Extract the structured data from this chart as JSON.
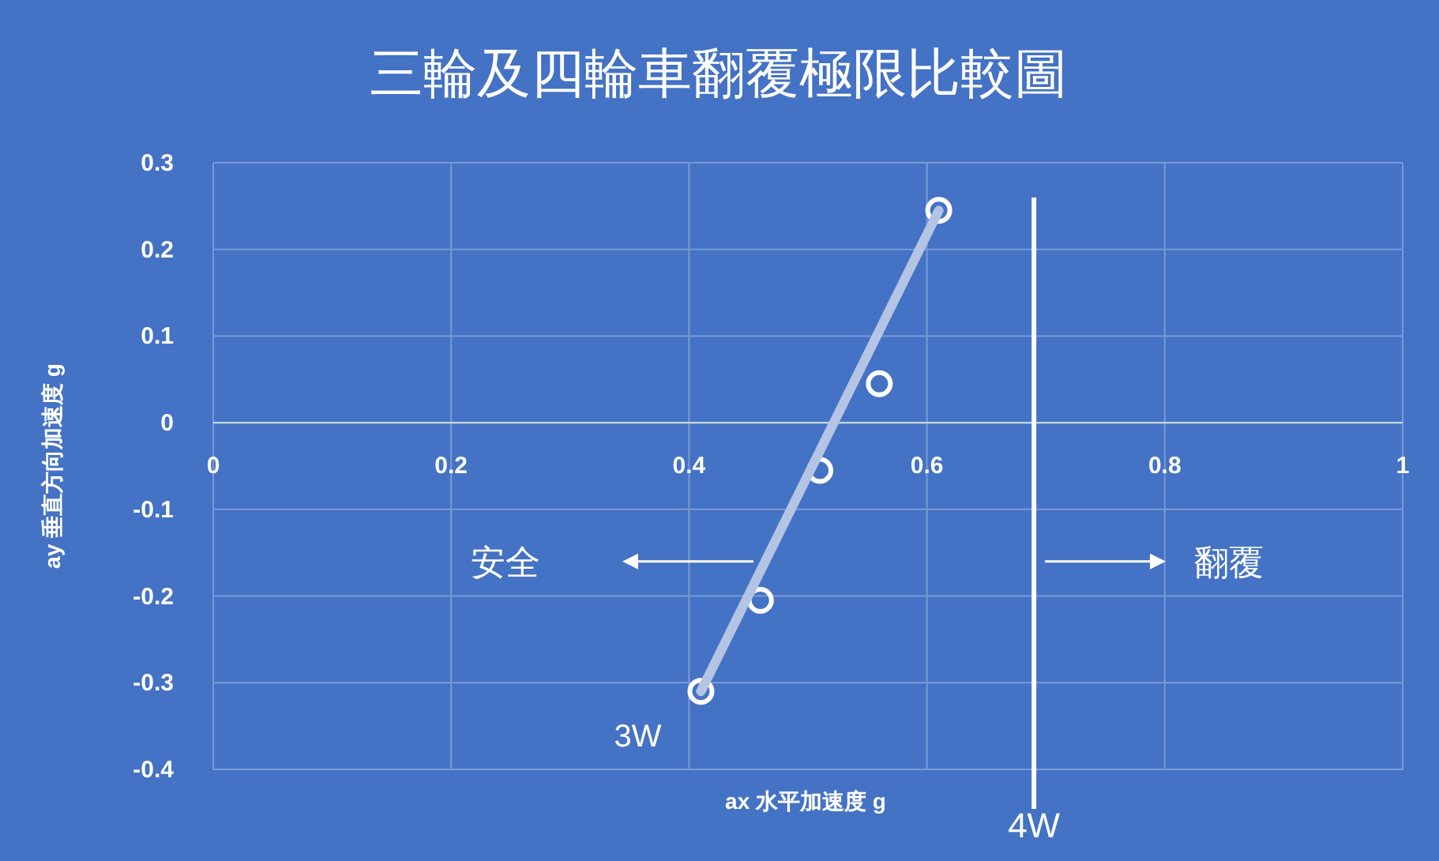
{
  "chart_data": {
    "type": "scatter",
    "title": "三輪及四輪車翻覆極限比較圖",
    "xlabel": "ax 水平加速度 g",
    "ylabel": "ay 垂直方向加速度 g",
    "xlim": [
      0,
      1
    ],
    "xticks": [
      0,
      0.2,
      0.4,
      0.6,
      0.8,
      1
    ],
    "ylim": [
      -0.4,
      0.3
    ],
    "yticks": [
      -0.4,
      -0.3,
      -0.2,
      -0.1,
      0,
      0.1,
      0.2,
      0.3
    ],
    "grid": true,
    "marker": "circle",
    "series": [
      {
        "name": "3W",
        "color": "#ffffff",
        "x": [
          0.41,
          0.46,
          0.51,
          0.56,
          0.61
        ],
        "values": [
          -0.31,
          -0.205,
          -0.055,
          0.045,
          0.245
        ]
      },
      {
        "type": "line",
        "color": "#b4c4e4",
        "line_style": "solid",
        "marker": "none",
        "x": [
          0.41,
          0.61
        ],
        "values": [
          -0.31,
          0.245
        ]
      }
    ],
    "ref_lines": [
      {
        "axis": "x",
        "value": 0.69,
        "label": "4W",
        "color": "#ffffff"
      }
    ],
    "annotations": [
      "安全",
      "翻覆"
    ]
  }
}
